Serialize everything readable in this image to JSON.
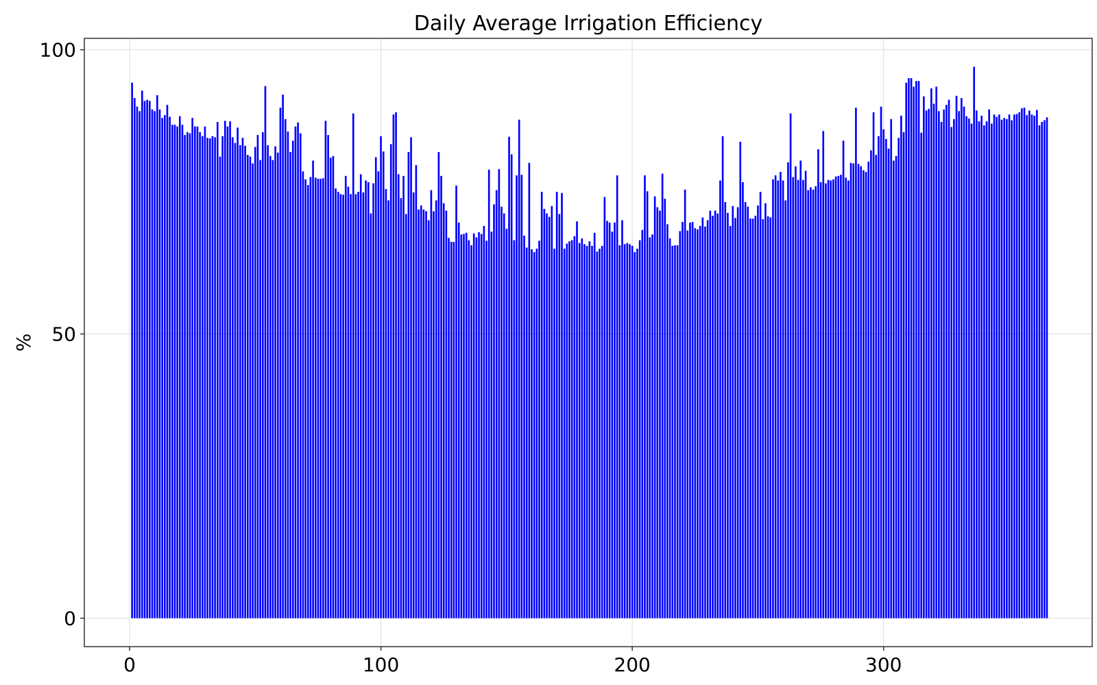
{
  "chart_data": {
    "type": "bar",
    "title": "Daily Average Irrigation Efficiency",
    "xlabel": "",
    "ylabel": "%",
    "xlim": [
      -18,
      383
    ],
    "ylim": [
      -5,
      102
    ],
    "xticks": [
      0,
      100,
      200,
      300
    ],
    "yticks": [
      0,
      50,
      100
    ],
    "grid": true,
    "color": "#0000ff",
    "x_start": 1,
    "values": [
      94.2,
      91.5,
      90.0,
      89.2,
      92.8,
      91.0,
      91.2,
      91.0,
      89.5,
      89.2,
      92.0,
      89.5,
      88.0,
      88.5,
      90.3,
      88.2,
      86.8,
      86.8,
      86.5,
      88.3,
      86.8,
      85.0,
      85.5,
      85.3,
      88.0,
      86.5,
      86.5,
      85.5,
      84.8,
      86.5,
      84.5,
      84.4,
      84.8,
      84.6,
      87.3,
      81.2,
      84.8,
      87.5,
      86.5,
      87.4,
      84.6,
      83.6,
      86.3,
      83.2,
      84.5,
      83.1,
      81.5,
      81.2,
      80.0,
      82.9,
      85.0,
      80.6,
      85.5,
      93.6,
      83.2,
      81.3,
      80.6,
      83.0,
      81.9,
      89.8,
      92.1,
      87.8,
      85.6,
      82.0,
      84.0,
      86.5,
      87.2,
      85.3,
      78.6,
      77.2,
      76.2,
      77.6,
      80.5,
      77.5,
      77.3,
      77.3,
      77.4,
      87.5,
      85.0,
      81.0,
      81.3,
      75.6,
      75.0,
      74.6,
      74.5,
      77.8,
      75.9,
      74.6,
      88.8,
      74.6,
      75.0,
      78.1,
      74.9,
      77.0,
      76.7,
      71.2,
      76.5,
      81.1,
      78.6,
      84.8,
      82.1,
      75.5,
      73.5,
      83.4,
      88.6,
      89.0,
      78.1,
      73.9,
      77.8,
      71.1,
      82.0,
      84.6,
      74.9,
      79.7,
      71.9,
      72.6,
      71.9,
      71.6,
      70.0,
      75.3,
      71.6,
      73.5,
      82.0,
      77.8,
      73.0,
      71.7,
      66.9,
      66.2,
      66.2,
      76.1,
      69.6,
      67.5,
      67.6,
      67.8,
      66.5,
      65.6,
      67.7,
      67.0,
      67.9,
      67.6,
      69.0,
      66.4,
      78.9,
      68.0,
      72.8,
      75.3,
      79.0,
      72.4,
      71.2,
      68.5,
      84.7,
      81.6,
      66.5,
      77.9,
      87.7,
      78.0,
      67.3,
      65.2,
      80.1,
      64.9,
      64.4,
      65.0,
      66.4,
      75.0,
      72.0,
      71.2,
      70.6,
      72.5,
      65.0,
      75.0,
      71.1,
      74.8,
      65.0,
      65.9,
      66.3,
      66.5,
      67.2,
      69.8,
      66.0,
      66.8,
      65.8,
      65.5,
      66.3,
      65.5,
      67.8,
      64.5,
      65.0,
      65.5,
      74.1,
      69.9,
      69.6,
      68.0,
      69.6,
      77.9,
      65.6,
      70.0,
      65.8,
      66.0,
      65.8,
      65.5,
      64.4,
      65.0,
      66.5,
      68.3,
      77.9,
      75.1,
      67.0,
      67.5,
      74.2,
      72.3,
      71.7,
      78.2,
      73.8,
      69.3,
      66.8,
      65.5,
      65.6,
      65.6,
      68.1,
      69.7,
      75.4,
      68.2,
      69.6,
      69.7,
      68.6,
      68.4,
      69.0,
      70.5,
      68.9,
      70.0,
      71.7,
      70.8,
      71.7,
      71.2,
      77.0,
      84.8,
      73.2,
      71.3,
      69.0,
      72.5,
      70.4,
      72.3,
      83.8,
      76.7,
      73.2,
      72.4,
      70.3,
      70.3,
      70.8,
      72.6,
      75.0,
      70.2,
      73.0,
      70.7,
      70.5,
      77.2,
      77.9,
      77.0,
      78.5,
      77.0,
      73.5,
      80.2,
      88.8,
      77.6,
      79.5,
      77.1,
      80.5,
      77.1,
      78.7,
      75.3,
      75.8,
      75.4,
      76.0,
      82.5,
      76.7,
      85.7,
      76.5,
      77.1,
      77.0,
      77.2,
      77.7,
      77.8,
      78.0,
      84.0,
      77.5,
      77.0,
      80.1,
      80.0,
      89.8,
      79.9,
      79.5,
      78.8,
      78.5,
      80.3,
      82.3,
      89.0,
      81.5,
      84.8,
      90.0,
      86.0,
      84.3,
      82.6,
      87.8,
      80.5,
      81.3,
      84.5,
      88.4,
      85.5,
      94.2,
      95.0,
      95.0,
      93.5,
      94.5,
      94.5,
      85.4,
      91.8,
      89.3,
      89.6,
      93.2,
      90.5,
      93.5,
      89.2,
      87.3,
      89.5,
      90.3,
      91.2,
      86.4,
      87.8,
      91.9,
      89.2,
      91.5,
      90.0,
      88.3,
      87.9,
      87.0,
      97.0,
      89.3,
      87.4,
      88.4,
      86.7,
      87.4,
      89.5,
      87.0,
      88.6,
      88.2,
      88.6,
      87.7,
      88.0,
      87.8,
      88.6,
      87.6,
      88.6,
      88.7,
      89.0,
      89.7,
      89.8,
      88.5,
      89.3,
      88.6,
      88.4,
      89.4,
      86.7,
      87.3,
      87.6,
      88.1
    ]
  }
}
